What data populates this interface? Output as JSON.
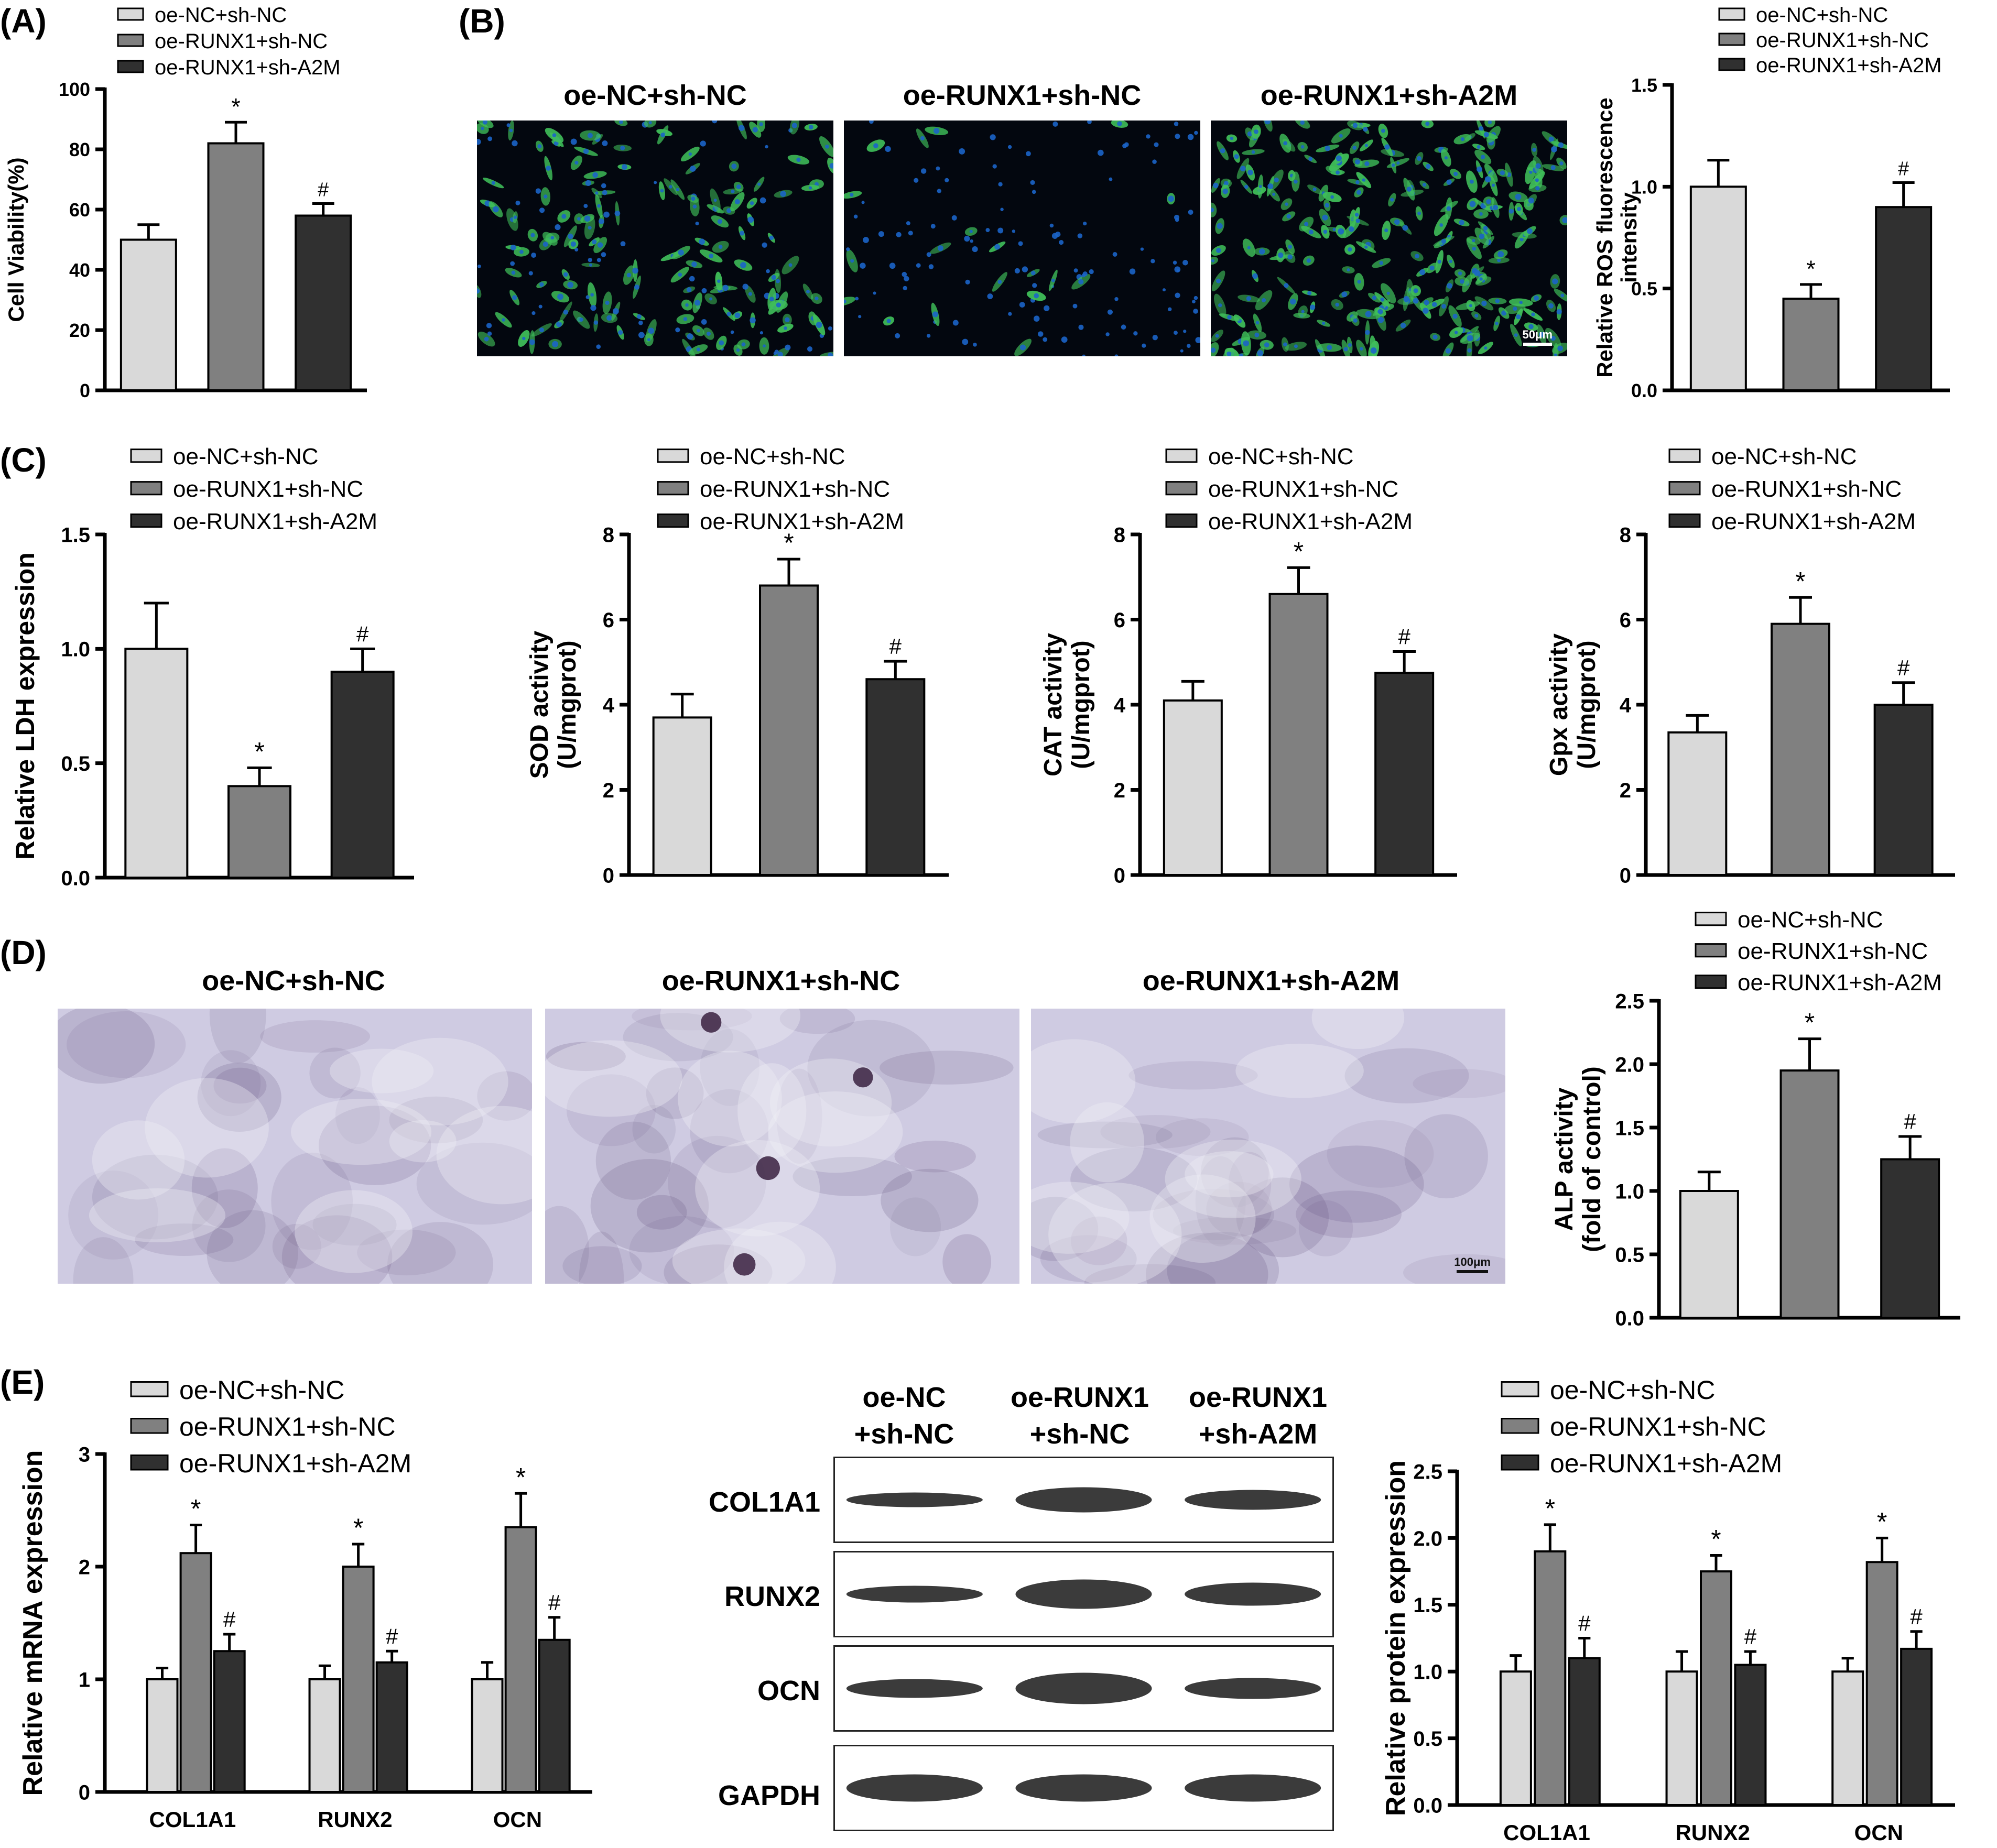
{
  "colors": {
    "group1": "#d9d9d9",
    "group2": "#808080",
    "group3": "#303030",
    "axis": "#000000",
    "ros_bg": "#03070f",
    "ros_cell": "#3fbf5a",
    "ros_nucleus": "#1b64c8",
    "alp_bg": "#cfcbe2",
    "alp_stain": "#5d4a78",
    "band": "#262626"
  },
  "groups": [
    "oe-NC+sh-NC",
    "oe-RUNX1+sh-NC",
    "oe-RUNX1+sh-A2M"
  ],
  "panels": {
    "A": {
      "label": "(A)"
    },
    "B": {
      "label": "(B)",
      "image_titles": [
        "oe-NC+sh-NC",
        "oe-RUNX1+sh-NC",
        "oe-RUNX1+sh-A2M"
      ],
      "scale_bar": "50μm"
    },
    "C": {
      "label": "(C)"
    },
    "D": {
      "label": "(D)",
      "image_titles": [
        "oe-NC+sh-NC",
        "oe-RUNX1+sh-NC",
        "oe-RUNX1+sh-A2M"
      ],
      "scale_bar": "100μm"
    },
    "E": {
      "label": "(E)",
      "blot": {
        "lane_labels": [
          [
            "oe-NC",
            "+sh-NC"
          ],
          [
            "oe-RUNX1",
            "+sh-NC"
          ],
          [
            "oe-RUNX1",
            "+sh-A2M"
          ]
        ],
        "rows": [
          "COL1A1",
          "RUNX2",
          "OCN",
          "GAPDH"
        ]
      }
    }
  },
  "chart_data": [
    {
      "id": "A",
      "type": "bar",
      "ylabel": "Cell Viability(%)",
      "ylim": [
        0,
        100
      ],
      "yticks": [
        0,
        20,
        40,
        60,
        80,
        100
      ],
      "categories": [
        ""
      ],
      "series": [
        {
          "name": "oe-NC+sh-NC",
          "values": [
            50
          ],
          "errors": [
            5
          ],
          "marks": [
            ""
          ]
        },
        {
          "name": "oe-RUNX1+sh-NC",
          "values": [
            82
          ],
          "errors": [
            7
          ],
          "marks": [
            "*"
          ]
        },
        {
          "name": "oe-RUNX1+sh-A2M",
          "values": [
            58
          ],
          "errors": [
            4
          ],
          "marks": [
            "#"
          ]
        }
      ],
      "legend": "top"
    },
    {
      "id": "B",
      "type": "bar",
      "ylabel": "Relative ROS fluorescence intensity",
      "ylim": [
        0,
        1.5
      ],
      "yticks": [
        0.0,
        0.5,
        1.0,
        1.5
      ],
      "categories": [
        ""
      ],
      "series": [
        {
          "name": "oe-NC+sh-NC",
          "values": [
            1.0
          ],
          "errors": [
            0.13
          ],
          "marks": [
            ""
          ]
        },
        {
          "name": "oe-RUNX1+sh-NC",
          "values": [
            0.45
          ],
          "errors": [
            0.07
          ],
          "marks": [
            "*"
          ]
        },
        {
          "name": "oe-RUNX1+sh-A2M",
          "values": [
            0.9
          ],
          "errors": [
            0.12
          ],
          "marks": [
            "#"
          ]
        }
      ],
      "legend": "top"
    },
    {
      "id": "C1",
      "type": "bar",
      "ylabel": "Relative LDH expression",
      "ylim": [
        0,
        1.5
      ],
      "yticks": [
        0.0,
        0.5,
        1.0,
        1.5
      ],
      "categories": [
        ""
      ],
      "series": [
        {
          "name": "oe-NC+sh-NC",
          "values": [
            1.0
          ],
          "errors": [
            0.2
          ],
          "marks": [
            ""
          ]
        },
        {
          "name": "oe-RUNX1+sh-NC",
          "values": [
            0.4
          ],
          "errors": [
            0.08
          ],
          "marks": [
            "*"
          ]
        },
        {
          "name": "oe-RUNX1+sh-A2M",
          "values": [
            0.9
          ],
          "errors": [
            0.1
          ],
          "marks": [
            "#"
          ]
        }
      ],
      "legend": "top"
    },
    {
      "id": "C2",
      "type": "bar",
      "ylabel": "SOD activity (U/mgprot)",
      "ylim": [
        0,
        8
      ],
      "yticks": [
        0,
        2,
        4,
        6,
        8
      ],
      "categories": [
        ""
      ],
      "series": [
        {
          "name": "oe-NC+sh-NC",
          "values": [
            3.7
          ],
          "errors": [
            0.55
          ],
          "marks": [
            ""
          ]
        },
        {
          "name": "oe-RUNX1+sh-NC",
          "values": [
            6.8
          ],
          "errors": [
            0.62
          ],
          "marks": [
            "*"
          ]
        },
        {
          "name": "oe-RUNX1+sh-A2M",
          "values": [
            4.6
          ],
          "errors": [
            0.42
          ],
          "marks": [
            "#"
          ]
        }
      ],
      "legend": "top"
    },
    {
      "id": "C3",
      "type": "bar",
      "ylabel": "CAT activity (U/mgprot)",
      "ylim": [
        0,
        8
      ],
      "yticks": [
        0,
        2,
        4,
        6,
        8
      ],
      "categories": [
        ""
      ],
      "series": [
        {
          "name": "oe-NC+sh-NC",
          "values": [
            4.1
          ],
          "errors": [
            0.45
          ],
          "marks": [
            ""
          ]
        },
        {
          "name": "oe-RUNX1+sh-NC",
          "values": [
            6.6
          ],
          "errors": [
            0.62
          ],
          "marks": [
            "*"
          ]
        },
        {
          "name": "oe-RUNX1+sh-A2M",
          "values": [
            4.75
          ],
          "errors": [
            0.5
          ],
          "marks": [
            "#"
          ]
        }
      ],
      "legend": "top"
    },
    {
      "id": "C4",
      "type": "bar",
      "ylabel": "Gpx activity (U/mgprot)",
      "ylim": [
        0,
        8
      ],
      "yticks": [
        0,
        2,
        4,
        6,
        8
      ],
      "categories": [
        ""
      ],
      "series": [
        {
          "name": "oe-NC+sh-NC",
          "values": [
            3.35
          ],
          "errors": [
            0.4
          ],
          "marks": [
            ""
          ]
        },
        {
          "name": "oe-RUNX1+sh-NC",
          "values": [
            5.9
          ],
          "errors": [
            0.62
          ],
          "marks": [
            "*"
          ]
        },
        {
          "name": "oe-RUNX1+sh-A2M",
          "values": [
            4.0
          ],
          "errors": [
            0.52
          ],
          "marks": [
            "#"
          ]
        }
      ],
      "legend": "top"
    },
    {
      "id": "D",
      "type": "bar",
      "ylabel": "ALP activity (fold of control)",
      "ylim": [
        0,
        2.5
      ],
      "yticks": [
        0.0,
        0.5,
        1.0,
        1.5,
        2.0,
        2.5
      ],
      "categories": [
        ""
      ],
      "series": [
        {
          "name": "oe-NC+sh-NC",
          "values": [
            1.0
          ],
          "errors": [
            0.15
          ],
          "marks": [
            ""
          ]
        },
        {
          "name": "oe-RUNX1+sh-NC",
          "values": [
            1.95
          ],
          "errors": [
            0.25
          ],
          "marks": [
            "*"
          ]
        },
        {
          "name": "oe-RUNX1+sh-A2M",
          "values": [
            1.25
          ],
          "errors": [
            0.18
          ],
          "marks": [
            "#"
          ]
        }
      ],
      "legend": "top"
    },
    {
      "id": "E1",
      "type": "bar",
      "ylabel": "Relative mRNA expression",
      "ylim": [
        0,
        3
      ],
      "yticks": [
        0,
        1,
        2,
        3
      ],
      "categories": [
        "COL1A1",
        "RUNX2",
        "OCN"
      ],
      "series": [
        {
          "name": "oe-NC+sh-NC",
          "values": [
            1.0,
            1.0,
            1.0
          ],
          "errors": [
            0.1,
            0.12,
            0.15
          ],
          "marks": [
            "",
            "",
            ""
          ]
        },
        {
          "name": "oe-RUNX1+sh-NC",
          "values": [
            2.12,
            2.0,
            2.35
          ],
          "errors": [
            0.25,
            0.2,
            0.3
          ],
          "marks": [
            "*",
            "*",
            "*"
          ]
        },
        {
          "name": "oe-RUNX1+sh-A2M",
          "values": [
            1.25,
            1.15,
            1.35
          ],
          "errors": [
            0.15,
            0.1,
            0.2
          ],
          "marks": [
            "#",
            "#",
            "#"
          ]
        }
      ],
      "legend": "top"
    },
    {
      "id": "E2",
      "type": "bar",
      "ylabel": "Relative protein expression",
      "ylim": [
        0,
        2.5
      ],
      "yticks": [
        0.0,
        0.5,
        1.0,
        1.5,
        2.0,
        2.5
      ],
      "categories": [
        "COL1A1",
        "RUNX2",
        "OCN"
      ],
      "series": [
        {
          "name": "oe-NC+sh-NC",
          "values": [
            1.0,
            1.0,
            1.0
          ],
          "errors": [
            0.12,
            0.15,
            0.1
          ],
          "marks": [
            "",
            "",
            ""
          ]
        },
        {
          "name": "oe-RUNX1+sh-NC",
          "values": [
            1.9,
            1.75,
            1.82
          ],
          "errors": [
            0.2,
            0.12,
            0.18
          ],
          "marks": [
            "*",
            "*",
            "*"
          ]
        },
        {
          "name": "oe-RUNX1+sh-A2M",
          "values": [
            1.1,
            1.05,
            1.17
          ],
          "errors": [
            0.15,
            0.1,
            0.13
          ],
          "marks": [
            "#",
            "#",
            "#"
          ]
        }
      ],
      "legend": "top"
    }
  ]
}
